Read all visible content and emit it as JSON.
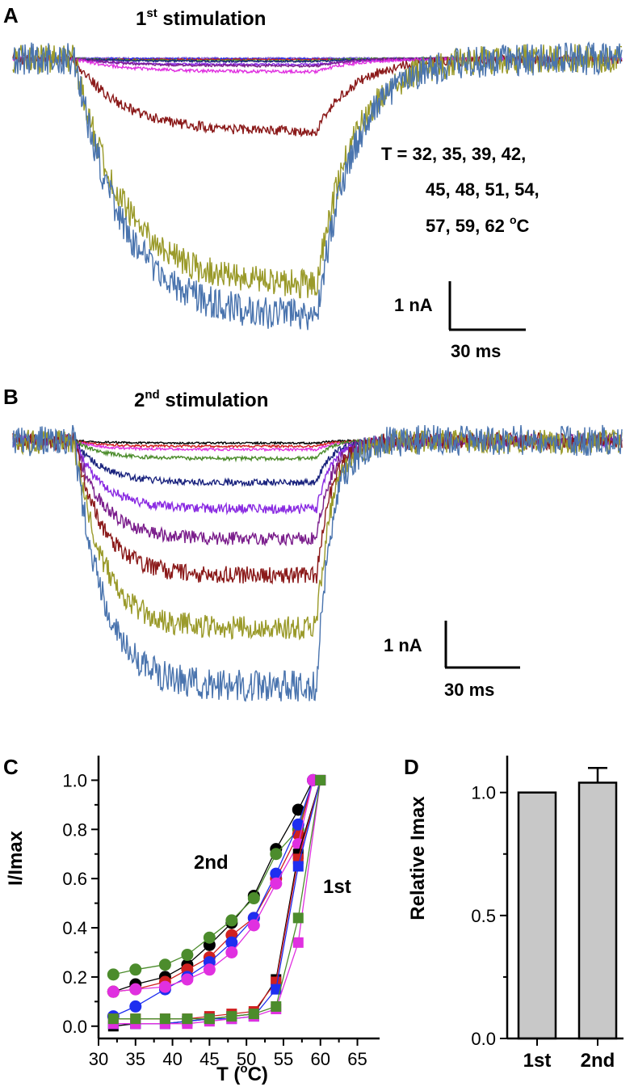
{
  "panels": {
    "A": {
      "letter": "A",
      "title_main": "1",
      "title_sup": "st",
      "title_rest": " stimulation",
      "temp_line1": "T = 32, 35, 39, 42,",
      "temp_line2": "45, 48, 51, 54,",
      "temp_line3_pre": "57, 59, 62 ",
      "temp_line3_sup": "o",
      "temp_line3_post": "C",
      "scale_current": "1 nA",
      "scale_time": "30 ms"
    },
    "B": {
      "letter": "B",
      "title_main": "2",
      "title_sup": "nd",
      "title_rest": " stimulation",
      "scale_current": "1 nA",
      "scale_time": "30 ms"
    },
    "C": {
      "letter": "C",
      "ylabel": "I/Imax",
      "xlabel_pre": "T (",
      "xlabel_sup": "o",
      "xlabel_post": "C)",
      "annot_2nd": "2nd",
      "annot_1st": "1st"
    },
    "D": {
      "letter": "D",
      "ylabel": "Relative Imax"
    }
  },
  "colors": {
    "trace_blue": "#4a74ae",
    "trace_olive": "#9a9a2a",
    "trace_darkred": "#8b1a1a",
    "trace_purple": "#7b1e8c",
    "trace_violet": "#8a2be2",
    "trace_navy": "#1a237e",
    "trace_green": "#4c8c2c",
    "trace_magenta": "#e030e0",
    "trace_black": "#000000",
    "trace_red": "#d02020",
    "trace_blue2": "#1e2ef0",
    "bar_fill": "#c8c8c8"
  },
  "chart_data": [
    {
      "type": "line",
      "title": "1st stimulation",
      "series": [
        {
          "name": "32",
          "color": "#9370db",
          "peak": 0.0
        },
        {
          "name": "35",
          "color": "#1e2ef0",
          "peak": 0.0
        },
        {
          "name": "39",
          "color": "#d02020",
          "peak": 0.0
        },
        {
          "name": "42",
          "color": "#4c8c2c",
          "peak": 0.01
        },
        {
          "name": "45",
          "color": "#1a237e",
          "peak": 0.01
        },
        {
          "name": "48",
          "color": "#8a2be2",
          "peak": 0.02
        },
        {
          "name": "51",
          "color": "#7b1e8c",
          "peak": 0.03
        },
        {
          "name": "54",
          "color": "#e030e0",
          "peak": 0.05
        },
        {
          "name": "57",
          "color": "#8b1a1a",
          "peak": 0.28
        },
        {
          "name": "59",
          "color": "#9a9a2a",
          "peak": 0.88
        },
        {
          "name": "62",
          "color": "#4a74ae",
          "peak": 1.0
        }
      ]
    },
    {
      "type": "line",
      "title": "2nd stimulation",
      "series": [
        {
          "name": "32",
          "color": "#000000",
          "peak": 0.01
        },
        {
          "name": "35",
          "color": "#d02020",
          "peak": 0.02
        },
        {
          "name": "39",
          "color": "#e030e0",
          "peak": 0.03
        },
        {
          "name": "42",
          "color": "#4c8c2c",
          "peak": 0.07
        },
        {
          "name": "45",
          "color": "#1a237e",
          "peak": 0.16
        },
        {
          "name": "48",
          "color": "#8a2be2",
          "peak": 0.26
        },
        {
          "name": "51",
          "color": "#7b1e8c",
          "peak": 0.38
        },
        {
          "name": "54",
          "color": "#8b1a1a",
          "peak": 0.52
        },
        {
          "name": "57",
          "color": "#9a9a2a",
          "peak": 0.72
        },
        {
          "name": "59",
          "color": "#4a74ae",
          "peak": 0.95
        }
      ]
    },
    {
      "type": "scatter",
      "xlabel": "T (oC)",
      "ylabel": "I/Imax",
      "xlim": [
        30,
        68
      ],
      "ylim": [
        -0.05,
        1.1
      ],
      "xticks": [
        30,
        35,
        40,
        45,
        50,
        55,
        60,
        65
      ],
      "yticks": [
        0.0,
        0.2,
        0.4,
        0.6,
        0.8,
        1.0
      ],
      "series": [
        {
          "name": "2nd",
          "marker": "circle",
          "color": "#000000",
          "x": [
            32,
            35,
            39,
            42,
            45,
            48,
            51,
            54,
            57,
            59
          ],
          "y": [
            0.14,
            0.17,
            0.2,
            0.25,
            0.33,
            0.42,
            0.53,
            0.72,
            0.88,
            1.0
          ]
        },
        {
          "name": "2nd",
          "marker": "circle",
          "color": "#4c8c2c",
          "x": [
            32,
            35,
            39,
            42,
            45,
            48,
            51,
            54,
            57,
            59
          ],
          "y": [
            0.21,
            0.23,
            0.25,
            0.29,
            0.36,
            0.43,
            0.52,
            0.7,
            0.8,
            1.0
          ]
        },
        {
          "name": "2nd",
          "marker": "circle",
          "color": "#d02020",
          "x": [
            32,
            35,
            39,
            42,
            45,
            48,
            51,
            54,
            57,
            59
          ],
          "y": [
            0.14,
            0.15,
            0.18,
            0.23,
            0.28,
            0.37,
            0.44,
            0.6,
            0.78,
            1.0
          ]
        },
        {
          "name": "2nd",
          "marker": "circle",
          "color": "#1e2ef0",
          "x": [
            32,
            35,
            39,
            42,
            45,
            48,
            51,
            54,
            57,
            59
          ],
          "y": [
            0.04,
            0.08,
            0.15,
            0.2,
            0.26,
            0.34,
            0.44,
            0.62,
            0.82,
            1.0
          ]
        },
        {
          "name": "2nd",
          "marker": "circle",
          "color": "#e030e0",
          "x": [
            32,
            35,
            39,
            42,
            45,
            48,
            51,
            54,
            57,
            59
          ],
          "y": [
            0.14,
            0.15,
            0.16,
            0.19,
            0.23,
            0.3,
            0.41,
            0.58,
            0.74,
            1.0
          ]
        },
        {
          "name": "1st",
          "marker": "square",
          "color": "#000000",
          "x": [
            32,
            35,
            39,
            42,
            45,
            48,
            51,
            54,
            57,
            60
          ],
          "y": [
            0.0,
            0.01,
            0.01,
            0.02,
            0.03,
            0.04,
            0.05,
            0.19,
            0.7,
            1.0
          ]
        },
        {
          "name": "1st",
          "marker": "square",
          "color": "#d02020",
          "x": [
            32,
            35,
            39,
            42,
            45,
            48,
            51,
            54,
            57,
            60
          ],
          "y": [
            0.03,
            0.03,
            0.03,
            0.03,
            0.04,
            0.05,
            0.06,
            0.18,
            0.68,
            1.0
          ]
        },
        {
          "name": "1st",
          "marker": "square",
          "color": "#1e2ef0",
          "x": [
            32,
            35,
            39,
            42,
            45,
            48,
            51,
            54,
            57,
            60
          ],
          "y": [
            0.01,
            0.01,
            0.01,
            0.02,
            0.03,
            0.03,
            0.04,
            0.15,
            0.65,
            1.0
          ]
        },
        {
          "name": "1st",
          "marker": "square",
          "color": "#e030e0",
          "x": [
            32,
            35,
            39,
            42,
            45,
            48,
            51,
            54,
            57,
            60
          ],
          "y": [
            0.01,
            0.01,
            0.01,
            0.01,
            0.02,
            0.03,
            0.04,
            0.07,
            0.34,
            1.0
          ]
        },
        {
          "name": "1st",
          "marker": "square",
          "color": "#4c8c2c",
          "x": [
            32,
            35,
            39,
            42,
            45,
            48,
            51,
            54,
            57,
            60
          ],
          "y": [
            0.03,
            0.03,
            0.03,
            0.03,
            0.03,
            0.04,
            0.05,
            0.08,
            0.44,
            1.0
          ]
        }
      ]
    },
    {
      "type": "bar",
      "ylabel": "Relative Imax",
      "categories": [
        "1st",
        "2nd"
      ],
      "values": [
        1.0,
        1.04
      ],
      "errors": [
        0.0,
        0.06
      ],
      "ylim": [
        0.0,
        1.15
      ],
      "yticks": [
        0.0,
        0.5,
        1.0
      ]
    }
  ]
}
